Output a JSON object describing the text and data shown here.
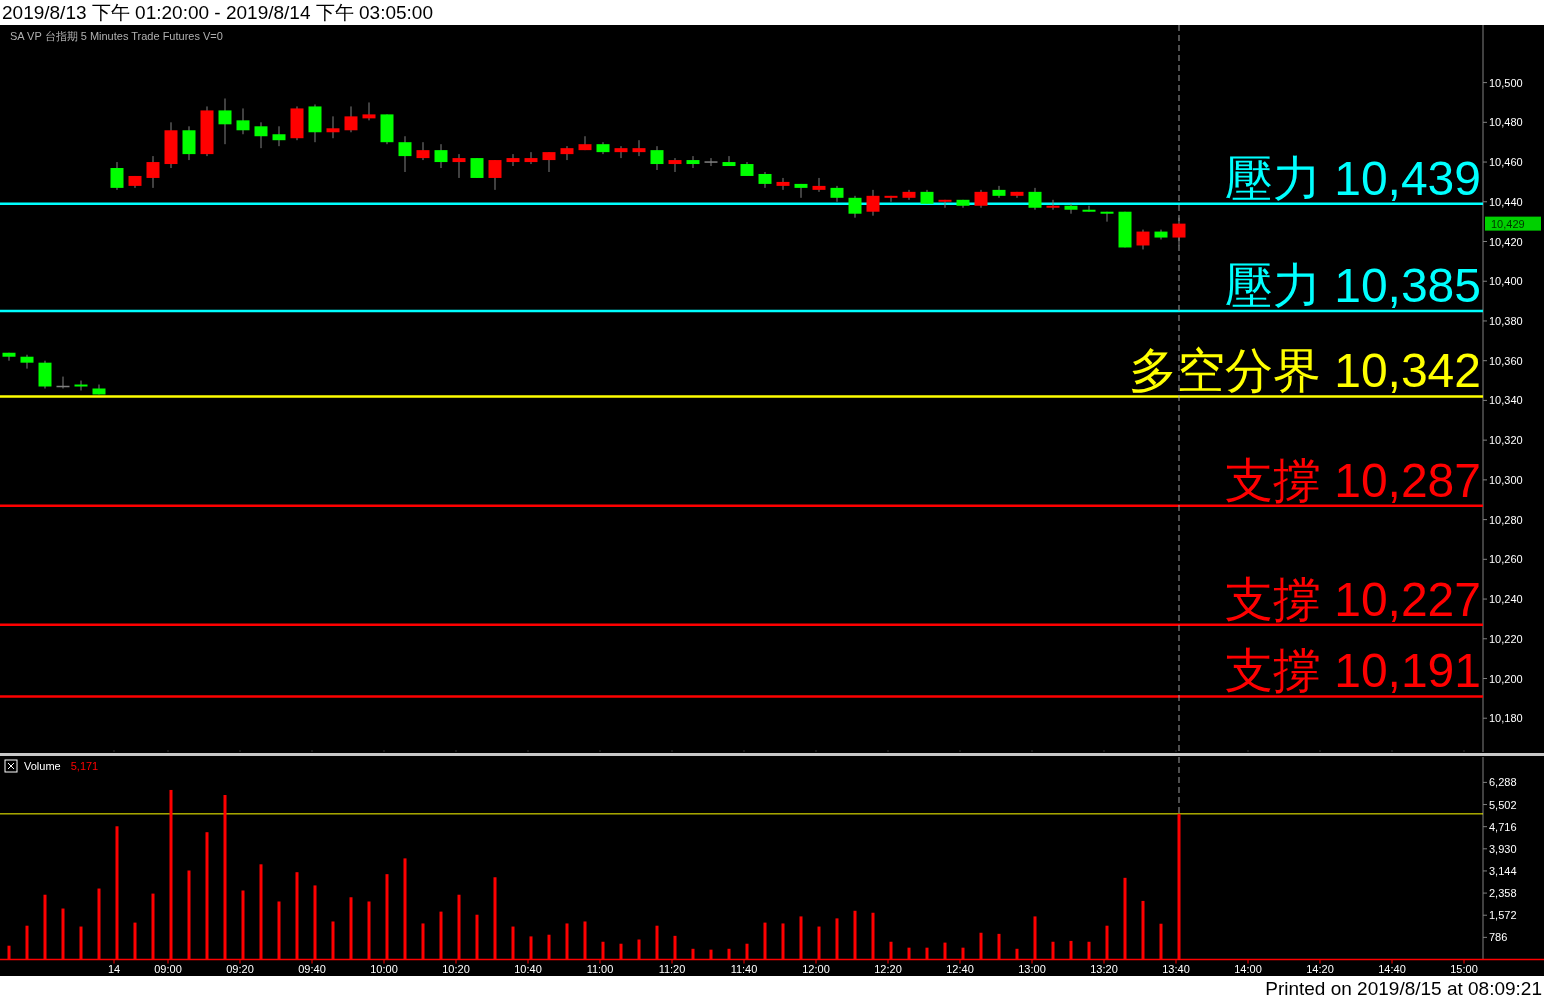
{
  "chart_data": [
    {
      "type": "candlestick",
      "title": "2019/8/13 下午 01:20:00 - 2019/8/14 下午 03:05:00",
      "subtitle": "SA   VP   台指期   5 Minutes   Trade   Futures   V=0",
      "categories": [
        null,
        null,
        null,
        null,
        null,
        null,
        "14",
        null,
        null,
        "09:00",
        null,
        null,
        null,
        "09:20",
        null,
        null,
        null,
        "09:40",
        null,
        null,
        null,
        "10:00",
        null,
        null,
        null,
        "10:20",
        null,
        null,
        null,
        "10:40",
        null,
        null,
        null,
        "11:00",
        null,
        null,
        null,
        "11:20",
        null,
        null,
        null,
        "11:40",
        null,
        null,
        null,
        "12:00",
        null,
        null,
        null,
        "12:20",
        null,
        null,
        null,
        "12:40",
        null,
        null,
        null,
        "13:00",
        null,
        null,
        null,
        "13:20",
        null,
        null,
        null,
        "13:40",
        null,
        null,
        null,
        "14:00",
        null,
        null,
        null,
        "14:20",
        null,
        null,
        null,
        "14:40",
        null,
        null,
        null,
        "15:00"
      ],
      "ohlc": [
        [
          10364,
          10364,
          10360,
          10362
        ],
        [
          10362,
          10363,
          10356,
          10359
        ],
        [
          10359,
          10360,
          10346,
          10347
        ],
        [
          10347,
          10352,
          10346,
          10347
        ],
        [
          10348,
          10350,
          10345,
          10347
        ],
        [
          10346,
          10348,
          10343,
          10343
        ],
        [
          10457,
          10460,
          10446,
          10447
        ],
        [
          10448,
          10453,
          10447,
          10453
        ],
        [
          10452,
          10463,
          10447,
          10460
        ],
        [
          10459,
          10480,
          10457,
          10476
        ],
        [
          10476,
          10478,
          10461,
          10464
        ],
        [
          10464,
          10488,
          10463,
          10486
        ],
        [
          10486,
          10492,
          10469,
          10479
        ],
        [
          10481,
          10487,
          10474,
          10476
        ],
        [
          10478,
          10480,
          10467,
          10473
        ],
        [
          10474,
          10478,
          10468,
          10471
        ],
        [
          10472,
          10488,
          10471,
          10487
        ],
        [
          10488,
          10489,
          10470,
          10475
        ],
        [
          10475,
          10483,
          10472,
          10477
        ],
        [
          10476,
          10488,
          10475,
          10483
        ],
        [
          10482,
          10490,
          10481,
          10484
        ],
        [
          10484,
          10484,
          10469,
          10470
        ],
        [
          10470,
          10473,
          10455,
          10463
        ],
        [
          10462,
          10470,
          10461,
          10466
        ],
        [
          10466,
          10469,
          10457,
          10460
        ],
        [
          10460,
          10464,
          10452,
          10462
        ],
        [
          10462,
          10462,
          10452,
          10452
        ],
        [
          10452,
          10461,
          10446,
          10461
        ],
        [
          10460,
          10464,
          10458,
          10462
        ],
        [
          10460,
          10465,
          10459,
          10462
        ],
        [
          10461,
          10465,
          10455,
          10465
        ],
        [
          10464,
          10468,
          10461,
          10467
        ],
        [
          10466,
          10473,
          10466,
          10469
        ],
        [
          10469,
          10470,
          10464,
          10465
        ],
        [
          10465,
          10468,
          10462,
          10467
        ],
        [
          10465,
          10471,
          10463,
          10467
        ],
        [
          10466,
          10468,
          10456,
          10459
        ],
        [
          10459,
          10462,
          10455,
          10461
        ],
        [
          10461,
          10463,
          10457,
          10459
        ],
        [
          10460,
          10462,
          10458,
          10460
        ],
        [
          10460,
          10463,
          10458,
          10458
        ],
        [
          10459,
          10460,
          10453,
          10453
        ],
        [
          10454,
          10455,
          10447,
          10449
        ],
        [
          10448,
          10452,
          10446,
          10450
        ],
        [
          10449,
          10449,
          10442,
          10447
        ],
        [
          10446,
          10452,
          10445,
          10448
        ],
        [
          10447,
          10448,
          10440,
          10442
        ],
        [
          10442,
          10443,
          10432,
          10434
        ],
        [
          10435,
          10446,
          10433,
          10443
        ],
        [
          10442,
          10443,
          10440,
          10443
        ],
        [
          10442,
          10446,
          10441,
          10445
        ],
        [
          10445,
          10446,
          10439,
          10439
        ],
        [
          10440,
          10441,
          10437,
          10441
        ],
        [
          10441,
          10441,
          10437,
          10438
        ],
        [
          10438,
          10446,
          10437,
          10445
        ],
        [
          10446,
          10448,
          10442,
          10443
        ],
        [
          10443,
          10445,
          10442,
          10445
        ],
        [
          10445,
          10447,
          10436,
          10437
        ],
        [
          10437,
          10441,
          10436,
          10438
        ],
        [
          10438,
          10439,
          10434,
          10436
        ],
        [
          10436,
          10438,
          10435,
          10435
        ],
        [
          10435,
          10435,
          10430,
          10434
        ],
        [
          10435,
          10435,
          10417,
          10417
        ],
        [
          10418,
          10426,
          10416,
          10425
        ],
        [
          10425,
          10426,
          10421,
          10422
        ],
        [
          10422,
          10432,
          10418,
          10429
        ],
        null,
        null,
        null,
        null,
        null,
        null,
        null,
        null,
        null,
        null,
        null,
        null,
        null,
        null,
        null,
        null
      ],
      "colors": [
        "#00ff00",
        "#00ff00",
        "#00ff00",
        "#808080",
        "#00ff00",
        "#00ff00",
        "#00ff00",
        "#ff0000",
        "#ff0000",
        "#ff0000",
        "#00ff00",
        "#ff0000",
        "#00ff00",
        "#00ff00",
        "#00ff00",
        "#00ff00",
        "#ff0000",
        "#00ff00",
        "#ff0000",
        "#ff0000",
        "#ff0000",
        "#00ff00",
        "#00ff00",
        "#ff0000",
        "#00ff00",
        "#ff0000",
        "#00ff00",
        "#ff0000",
        "#ff0000",
        "#ff0000",
        "#ff0000",
        "#ff0000",
        "#ff0000",
        "#00ff00",
        "#ff0000",
        "#ff0000",
        "#00ff00",
        "#ff0000",
        "#00ff00",
        "#808080",
        "#00ff00",
        "#00ff00",
        "#00ff00",
        "#ff0000",
        "#00ff00",
        "#ff0000",
        "#00ff00",
        "#00ff00",
        "#ff0000",
        "#ff0000",
        "#ff0000",
        "#00ff00",
        "#ff0000",
        "#00ff00",
        "#ff0000",
        "#00ff00",
        "#ff0000",
        "#00ff00",
        "#ff0000",
        "#00ff00",
        "#00ff00",
        "#00ff00",
        "#00ff00",
        "#ff0000",
        "#00ff00",
        "#ff0000",
        null,
        null,
        null,
        null,
        null,
        null,
        null,
        null,
        null,
        null,
        null,
        null,
        null,
        null,
        null,
        null
      ],
      "ylim": [
        10163,
        10529
      ],
      "yticks": [
        {
          "value": 10180,
          "label": "10,180"
        },
        {
          "value": 10200,
          "label": "10,200"
        },
        {
          "value": 10220,
          "label": "10,220"
        },
        {
          "value": 10240,
          "label": "10,240"
        },
        {
          "value": 10260,
          "label": "10,260"
        },
        {
          "value": 10280,
          "label": "10,280"
        },
        {
          "value": 10300,
          "label": "10,300"
        },
        {
          "value": 10320,
          "label": "10,320"
        },
        {
          "value": 10340,
          "label": "10,340"
        },
        {
          "value": 10360,
          "label": "10,360"
        },
        {
          "value": 10380,
          "label": "10,380"
        },
        {
          "value": 10400,
          "label": "10,400"
        },
        {
          "value": 10420,
          "label": "10,420"
        },
        {
          "value": 10440,
          "label": "10,440"
        },
        {
          "value": 10460,
          "label": "10,460"
        },
        {
          "value": 10480,
          "label": "10,480"
        },
        {
          "value": 10500,
          "label": "10,500"
        }
      ],
      "tick_labels": "y",
      "ref_lines": [
        {
          "axis": "y",
          "value": 10439,
          "label": "壓力 10,439",
          "color": "#00ffff"
        },
        {
          "axis": "y",
          "value": 10385,
          "label": "壓力 10,385",
          "color": "#00ffff"
        },
        {
          "axis": "y",
          "value": 10342,
          "label": "多空分界 10,342",
          "color": "#ffff00"
        },
        {
          "axis": "y",
          "value": 10287,
          "label": "支撐 10,287",
          "color": "#ff0000"
        },
        {
          "axis": "y",
          "value": 10227,
          "label": "支撐 10,227",
          "color": "#ff0000"
        },
        {
          "axis": "y",
          "value": 10191,
          "label": "支撐 10,191",
          "color": "#ff0000"
        },
        {
          "axis": "x",
          "value": "13:40",
          "color": "#a0a0a0",
          "line_style": "dashed"
        }
      ],
      "annotations": [
        "10,429"
      ]
    },
    {
      "type": "bar",
      "title": "Volume",
      "categories": [
        null,
        null,
        null,
        null,
        null,
        null,
        "14",
        null,
        null,
        "09:00",
        null,
        null,
        null,
        "09:20",
        null,
        null,
        null,
        "09:40",
        null,
        null,
        null,
        "10:00",
        null,
        null,
        null,
        "10:20",
        null,
        null,
        null,
        "10:40",
        null,
        null,
        null,
        "11:00",
        null,
        null,
        null,
        "11:20",
        null,
        null,
        null,
        "11:40",
        null,
        null,
        null,
        "12:00",
        null,
        null,
        null,
        "12:20",
        null,
        null,
        null,
        "12:40",
        null,
        null,
        null,
        "13:00",
        null,
        null,
        null,
        "13:20",
        null,
        null,
        null,
        "13:40",
        null,
        null,
        null,
        "14:00",
        null,
        null,
        null,
        "14:20",
        null,
        null,
        null,
        "14:40",
        null,
        null,
        null,
        "15:00"
      ],
      "values": [
        490,
        1200,
        2300,
        1810,
        1170,
        2520,
        4730,
        1310,
        2340,
        6020,
        3160,
        4520,
        5840,
        2450,
        3380,
        2060,
        3100,
        2630,
        1350,
        2210,
        2060,
        3030,
        3590,
        1280,
        1700,
        2300,
        1590,
        2920,
        1170,
        820,
        880,
        1280,
        1350,
        630,
        560,
        710,
        1200,
        840,
        380,
        350,
        380,
        560,
        1310,
        1280,
        1530,
        1170,
        1460,
        1730,
        1660,
        630,
        420,
        420,
        600,
        420,
        950,
        910,
        380,
        1530,
        630,
        660,
        630,
        1200,
        2900,
        2080,
        1270,
        5171,
        null,
        null,
        null,
        null,
        null,
        null,
        null,
        null,
        null,
        null,
        null,
        null,
        null,
        null,
        null,
        null
      ],
      "color": "#ff0000",
      "ylim": [
        0,
        7190
      ],
      "yticks": [
        786,
        {
          "value": 1572,
          "label": "1,572"
        },
        {
          "value": 2358,
          "label": "2,358"
        },
        {
          "value": 3144,
          "label": "3,144"
        },
        {
          "value": 3930,
          "label": "3,930"
        },
        {
          "value": 4716,
          "label": "4,716"
        },
        {
          "value": 5502,
          "label": "5,502"
        },
        {
          "value": 6288,
          "label": "6,288"
        }
      ],
      "ref_lines": [
        {
          "axis": "y",
          "value": 5171,
          "color": "#ffff00"
        },
        {
          "axis": "x",
          "value": "13:40",
          "color": "#a0a0a0",
          "line_style": "dashed"
        }
      ],
      "annotations": [
        "5,171",
        "Printed on 2019/8/15 at 08:09:21"
      ]
    }
  ]
}
